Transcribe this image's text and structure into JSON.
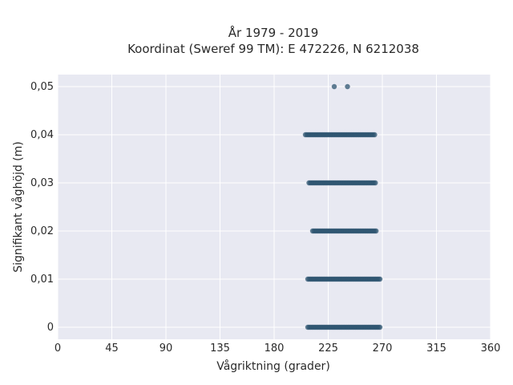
{
  "chart_data": {
    "type": "scatter",
    "title": [
      "År 1979 - 2019",
      "Koordinat (Sweref 99 TM): E 472226, N 6212038"
    ],
    "xlabel": "Vågriktning (grader)",
    "ylabel": "Signifikant våghöjd (m)",
    "xlim": [
      0,
      360
    ],
    "ylim": [
      -0.0025,
      0.0525
    ],
    "xticks": [
      0,
      45,
      90,
      135,
      180,
      225,
      270,
      315,
      360
    ],
    "xtick_labels": [
      "0",
      "45",
      "90",
      "135",
      "180",
      "225",
      "270",
      "315",
      "360"
    ],
    "yticks": [
      0,
      0.01,
      0.02,
      0.03,
      0.04,
      0.05
    ],
    "ytick_labels": [
      "0",
      "0,01",
      "0,02",
      "0,03",
      "0,04",
      "0,05"
    ],
    "grid": true,
    "marker_color": "#2e5470",
    "plot_background": "#e8e9f2",
    "series": [
      {
        "points": [
          {
            "y": 0,
            "x_min": 208,
            "x_max": 268
          },
          {
            "y": 0.01,
            "x_min": 208,
            "x_max": 268
          },
          {
            "y": 0.02,
            "x_min": 212,
            "x_max": 265
          },
          {
            "y": 0.03,
            "x_min": 209,
            "x_max": 265
          },
          {
            "y": 0.04,
            "x_min": 206,
            "x_max": 264
          }
        ],
        "isolated": [
          {
            "x": 230,
            "y": 0.05
          },
          {
            "x": 241,
            "y": 0.05
          }
        ]
      }
    ]
  }
}
